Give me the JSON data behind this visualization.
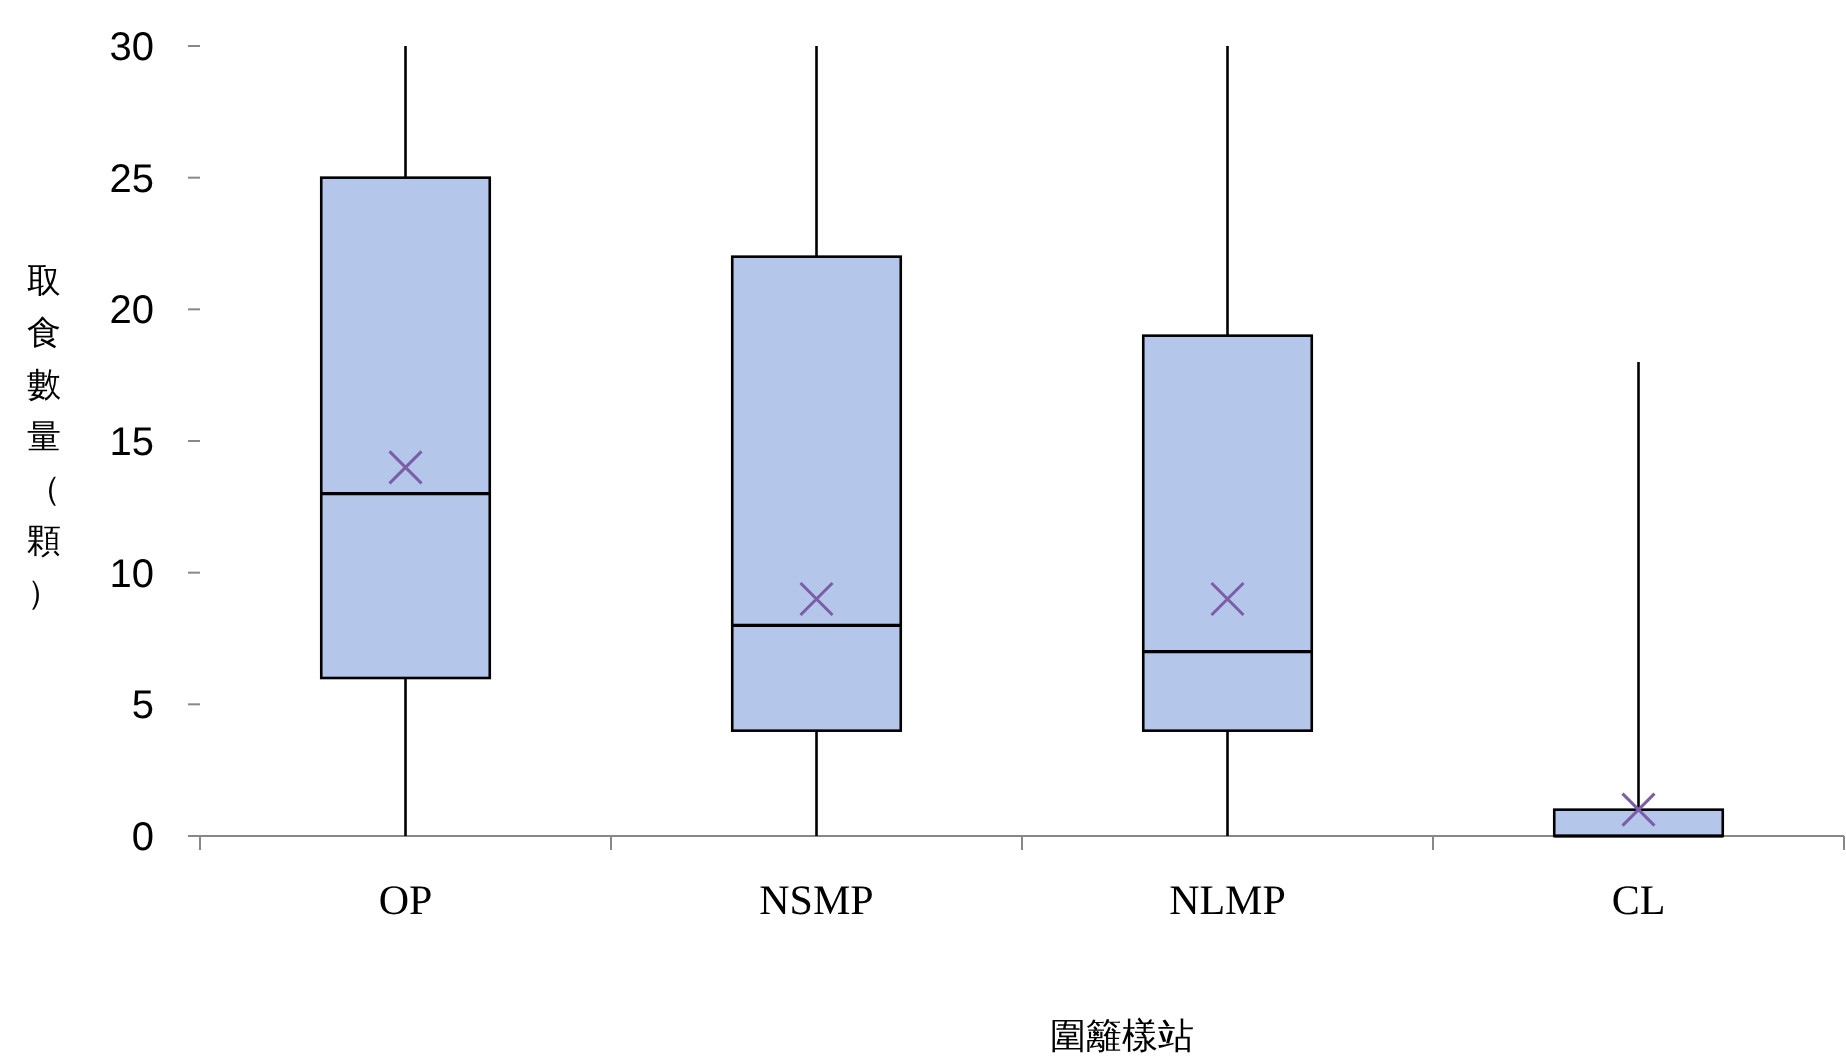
{
  "chart_data": {
    "type": "box",
    "xlabel": "圍籬樣站",
    "ylabel": "取食數量（顆）",
    "categories": [
      "OP",
      "NSMP",
      "NLMP",
      "CL"
    ],
    "color": "#b4c6e9",
    "boxes": [
      {
        "low": 0,
        "q1": 6,
        "median": 13,
        "q3": 25,
        "high": 30,
        "mean": 14
      },
      {
        "low": 0,
        "q1": 4,
        "median": 8,
        "q3": 22,
        "high": 30,
        "mean": 9
      },
      {
        "low": 0,
        "q1": 4,
        "median": 7,
        "q3": 19,
        "high": 30,
        "mean": 9
      },
      {
        "low": 0,
        "q1": 0,
        "median": 0,
        "q3": 1,
        "high": 18,
        "mean": 1
      }
    ],
    "ylim": [
      0,
      30
    ],
    "yticks": [
      0,
      5,
      10,
      15,
      20,
      25,
      30
    ]
  }
}
